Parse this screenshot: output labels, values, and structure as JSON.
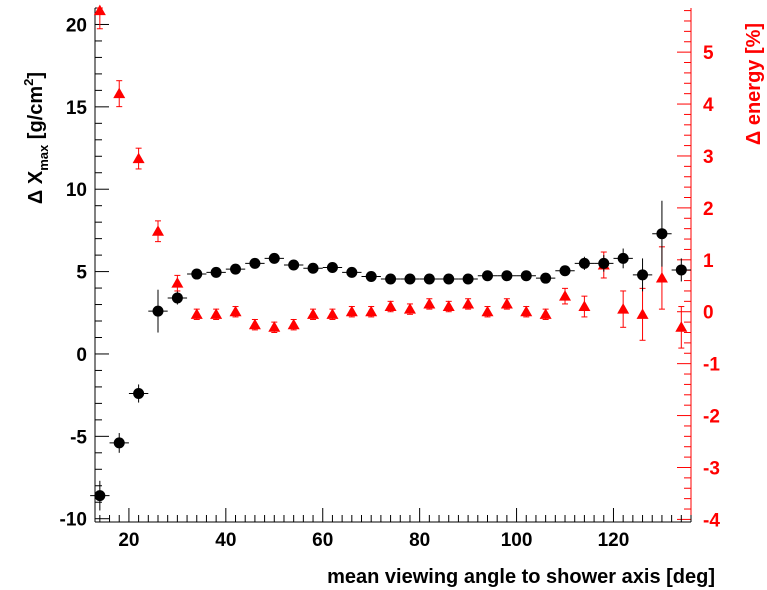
{
  "chart_data": {
    "type": "scatter",
    "xlabel": "mean viewing angle to shower axis [deg]",
    "ylabel_left": {
      "prefix": "Δ X",
      "sub": "max",
      "unit_pre": " [g/cm",
      "unit_sup": "2",
      "unit_post": "]"
    },
    "ylabel_right": "Δ energy  [%]",
    "xlim": [
      13,
      136
    ],
    "ylim_left": [
      -10.2,
      21
    ],
    "ylim_right": [
      -4.05,
      5.85
    ],
    "x_ticks": [
      20,
      40,
      60,
      80,
      100,
      120
    ],
    "x_tick_labels": [
      "20",
      "40",
      "60",
      "80",
      "100",
      "120"
    ],
    "y_left_ticks": [
      -10,
      -5,
      0,
      5,
      10,
      15,
      20
    ],
    "y_left_tick_labels": [
      "-10",
      "-5",
      "0",
      "5",
      "10",
      "15",
      "20"
    ],
    "y_right_ticks": [
      -4,
      -3,
      -2,
      -1,
      0,
      1,
      2,
      3,
      4,
      5
    ],
    "y_right_tick_labels": [
      "-4",
      "-3",
      "-2",
      "-1",
      "0",
      "1",
      "2",
      "3",
      "4",
      "5"
    ],
    "colors": {
      "left_axis": "#000000",
      "right_axis": "#ff0000"
    },
    "series": [
      {
        "axis": "left",
        "marker": "circle",
        "color": "#000000",
        "x": [
          14,
          18,
          22,
          26,
          30,
          34,
          38,
          42,
          46,
          50,
          54,
          58,
          62,
          66,
          70,
          74,
          78,
          82,
          86,
          90,
          94,
          98,
          102,
          106,
          110,
          114,
          118,
          122,
          126,
          130,
          134
        ],
        "y": [
          -8.6,
          -5.4,
          -2.4,
          2.6,
          3.4,
          4.85,
          4.95,
          5.15,
          5.5,
          5.8,
          5.4,
          5.2,
          5.25,
          4.95,
          4.7,
          4.55,
          4.55,
          4.55,
          4.55,
          4.55,
          4.75,
          4.75,
          4.75,
          4.6,
          5.05,
          5.5,
          5.5,
          5.8,
          4.8,
          7.3,
          5.1
        ],
        "yerr": [
          0.9,
          0.6,
          0.55,
          1.3,
          0.4,
          0.3,
          0.25,
          0.2,
          0.2,
          0.2,
          0.2,
          0.2,
          0.2,
          0.2,
          0.2,
          0.2,
          0.2,
          0.2,
          0.2,
          0.2,
          0.2,
          0.2,
          0.2,
          0.2,
          0.3,
          0.4,
          0.5,
          0.6,
          1.0,
          2.0,
          0.7
        ],
        "xerr": 2
      },
      {
        "axis": "right",
        "marker": "triangle",
        "color": "#ff0000",
        "x": [
          14,
          18,
          22,
          26,
          30,
          34,
          38,
          42,
          46,
          50,
          54,
          58,
          62,
          66,
          70,
          74,
          78,
          82,
          86,
          90,
          94,
          98,
          102,
          106,
          110,
          114,
          118,
          122,
          126,
          130,
          134
        ],
        "y": [
          5.8,
          4.2,
          2.95,
          1.55,
          0.55,
          -0.05,
          -0.05,
          0.0,
          -0.25,
          -0.3,
          -0.25,
          -0.05,
          -0.05,
          0.0,
          0.0,
          0.1,
          0.05,
          0.15,
          0.1,
          0.15,
          0.0,
          0.15,
          0.0,
          -0.05,
          0.3,
          0.1,
          0.9,
          0.05,
          -0.05,
          0.65,
          -0.3
        ],
        "yerr": [
          0.35,
          0.25,
          0.2,
          0.2,
          0.15,
          0.1,
          0.1,
          0.1,
          0.1,
          0.1,
          0.1,
          0.1,
          0.1,
          0.1,
          0.1,
          0.1,
          0.1,
          0.1,
          0.1,
          0.1,
          0.1,
          0.1,
          0.1,
          0.1,
          0.15,
          0.2,
          0.25,
          0.35,
          0.5,
          0.6,
          0.4
        ]
      }
    ]
  }
}
